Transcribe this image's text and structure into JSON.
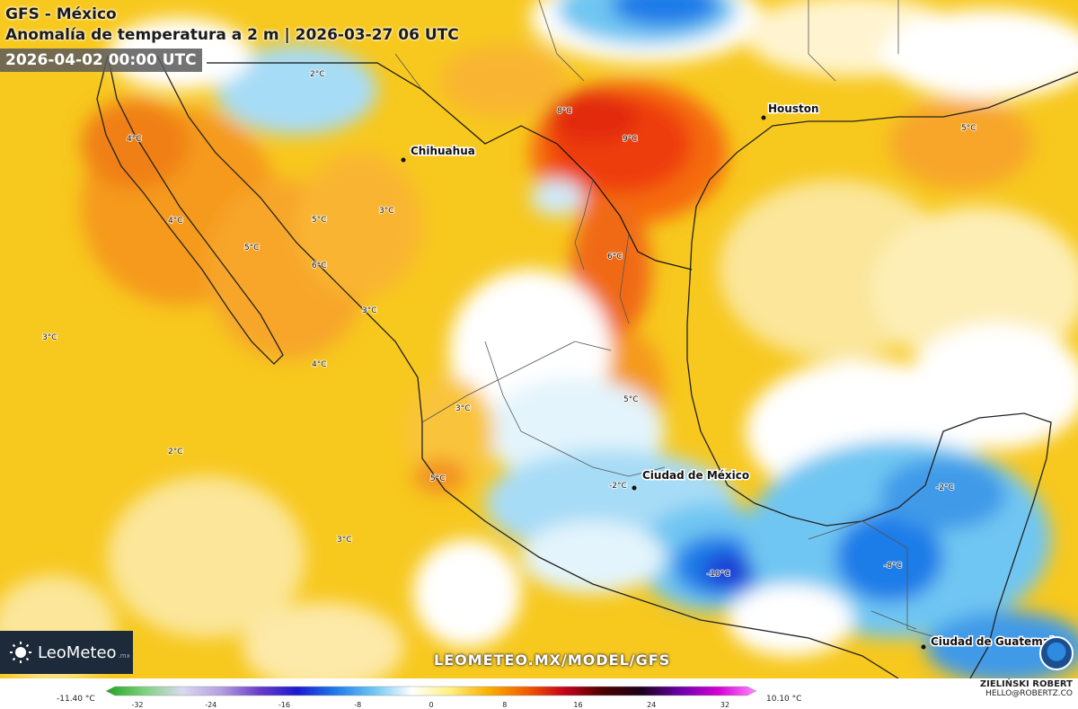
{
  "header": {
    "title": "GFS - México",
    "subtitle": "Anomalía de temperatura a 2 m | 2026-03-27 06 UTC",
    "valid_time": "2026-04-02 00:00 UTC"
  },
  "cities": [
    {
      "name": "Chihuahua"
    },
    {
      "name": "Houston"
    },
    {
      "name": "Ciudad de México"
    },
    {
      "name": "Ciudad de Guatemala"
    }
  ],
  "anomaly_labels": [
    "2°C",
    "4°C",
    "4°C",
    "5°C",
    "5°C",
    "3°C",
    "6°C",
    "3°C",
    "4°C",
    "3°C",
    "2°C",
    "3°C",
    "8°C",
    "9°C",
    "6°C",
    "5°C",
    "3°C",
    "5°C",
    "5°C",
    "-2°C",
    "-10°C",
    "-8°C",
    "-2°C"
  ],
  "colorbar": {
    "min_label": "-11.40 °C",
    "max_label": "10.10 °C",
    "ticks": [
      "-32",
      "-24",
      "-16",
      "-8",
      "0",
      "8",
      "16",
      "24",
      "32"
    ],
    "colors": [
      "#1fa41f",
      "#7fd17f",
      "#d9d9ef",
      "#b59fe0",
      "#6a3cc8",
      "#1a1ad0",
      "#1e7be8",
      "#6fc6f2",
      "#ffffff",
      "#ffef80",
      "#f7b100",
      "#f25c00",
      "#c3001a",
      "#4a0000",
      "#1a001a",
      "#6a00a8",
      "#d400d4",
      "#ff88ff"
    ]
  },
  "branding": {
    "logo": "LeoMeteo",
    "logo_sub": ".mx",
    "website": "LEOMETEO.MX/MODEL/GFS",
    "author": "ZIELIŃSKI ROBERT",
    "email": "HELLO@ROBERTZ.CO"
  },
  "icons": [
    "sun-icon",
    "noaa-logo-icon"
  ]
}
